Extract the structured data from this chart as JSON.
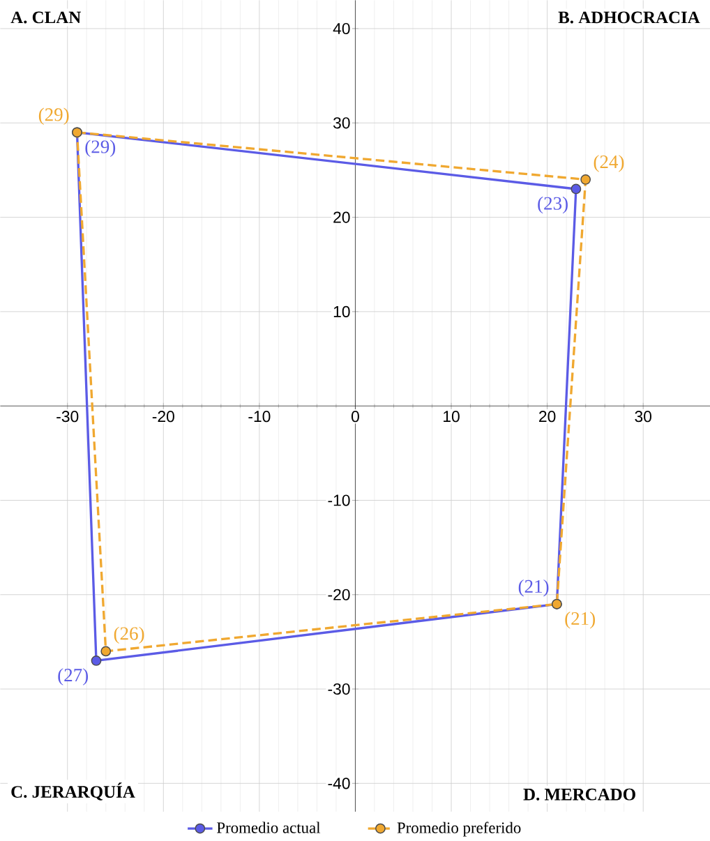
{
  "chart_data": {
    "type": "scatter",
    "xlim": [
      -37,
      37
    ],
    "ylim": [
      -43,
      43
    ],
    "xticks": [
      -30,
      -20,
      -10,
      0,
      10,
      20,
      30
    ],
    "yticks": [
      -40,
      -30,
      -20,
      -10,
      10,
      20,
      30,
      40
    ],
    "grid": true,
    "marker": "circle",
    "legend": "bottom",
    "annotations": [
      "A.   CLAN",
      "B.   ADHOCRACIA",
      "C.   JERARQUÍA",
      "D.   MERCADO"
    ],
    "series": [
      {
        "name": "Promedio actual",
        "color": "#5b5be6",
        "line_style": "solid",
        "x": [
          -29,
          23,
          21,
          -27
        ],
        "values": [
          29,
          23,
          -21,
          -27
        ],
        "value_labels": [
          "(29)",
          "(23)",
          "(21)",
          "(27)"
        ]
      },
      {
        "name": "Promedio preferido",
        "color": "#f0a830",
        "line_style": "dashed",
        "x": [
          -29,
          24,
          21,
          -26
        ],
        "values": [
          29,
          24,
          -21,
          -26
        ],
        "value_labels": [
          "(29)",
          "(24)",
          "(21)",
          "(26)"
        ]
      }
    ]
  }
}
